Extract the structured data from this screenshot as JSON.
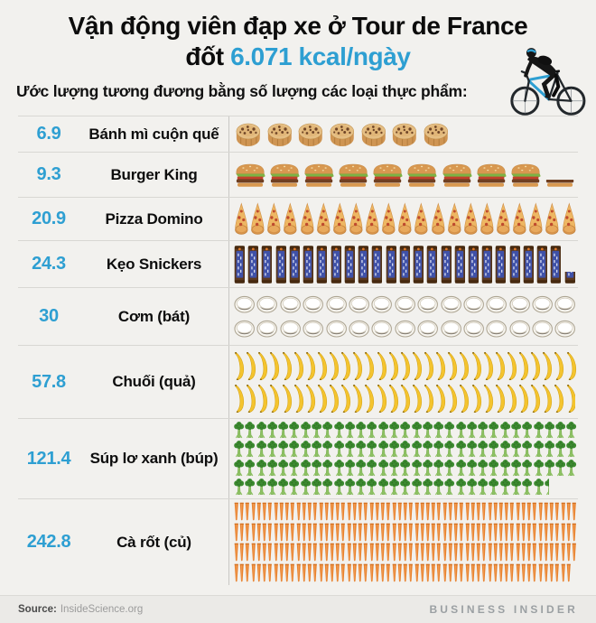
{
  "header": {
    "title_line1": "Vận động viên đạp xe ở Tour de France",
    "title_line2_prefix": "đốt ",
    "title_line2_highlight": "6.071 kcal/ngày",
    "subtitle": "Ước lượng tương đương bằng số lượng các loại thực phẩm:",
    "accent_color": "#2e9fd2"
  },
  "chart_data": {
    "type": "pictogram",
    "title": "Vận động viên đạp xe ở Tour de France đốt 6.071 kcal/ngày",
    "subtitle": "Ước lượng tương đương bằng số lượng các loại thực phẩm:",
    "categories": [
      "Bánh mì cuộn quế",
      "Burger King",
      "Pizza Domino",
      "Kẹo Snickers",
      "Cơm (bát)",
      "Chuối (quả)",
      "Súp lơ xanh (búp)",
      "Cà rốt (củ)"
    ],
    "values": [
      6.9,
      9.3,
      20.9,
      24.3,
      30,
      57.8,
      121.4,
      242.8
    ],
    "rows": [
      {
        "value": "6.9",
        "count": 6.9,
        "label": "Bánh mì cuộn quế",
        "icon": "cinnamon-roll"
      },
      {
        "value": "9.3",
        "count": 9.3,
        "label": "Burger King",
        "icon": "burger"
      },
      {
        "value": "20.9",
        "count": 20.9,
        "label": "Pizza Domino",
        "icon": "pizza"
      },
      {
        "value": "24.3",
        "count": 24.3,
        "label": "Kẹo Snickers",
        "icon": "snickers"
      },
      {
        "value": "30",
        "count": 30,
        "label": "Cơm (bát)",
        "icon": "rice-bowl"
      },
      {
        "value": "57.8",
        "count": 57.8,
        "label": "Chuối (quả)",
        "icon": "banana"
      },
      {
        "value": "121.4",
        "count": 121.4,
        "label": "Súp lơ xanh (búp)",
        "icon": "broccoli"
      },
      {
        "value": "242.8",
        "count": 242.8,
        "label": "Cà rốt (củ)",
        "icon": "carrot"
      }
    ]
  },
  "footer": {
    "source_label": "Source:",
    "source_value": "InsideScience.org",
    "brand": "BUSINESS INSIDER"
  }
}
